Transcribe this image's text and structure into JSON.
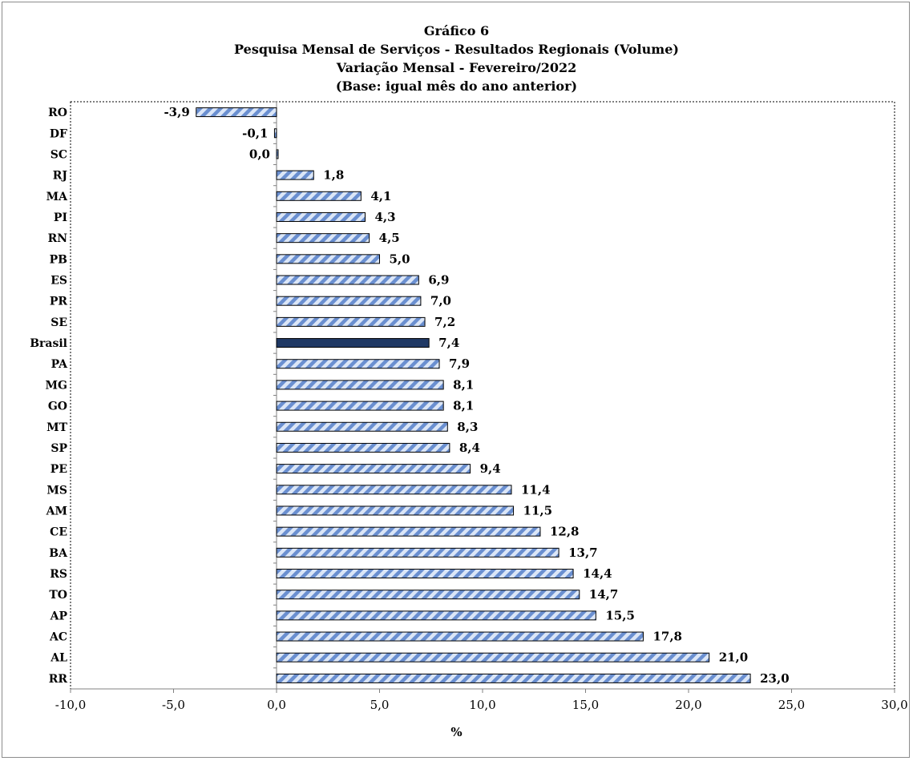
{
  "chart_data": {
    "type": "bar",
    "orientation": "horizontal",
    "title_lines": [
      "Gráfico 6",
      "Pesquisa  Mensal de Serviços - Resultados Regionais (Volume)",
      "Variação Mensal - Fevereiro/2022",
      "(Base: igual mês do ano anterior)"
    ],
    "xlabel": "%",
    "ylabel": "",
    "xlim": [
      -10,
      30
    ],
    "x_ticks": [
      -10,
      -5,
      0,
      5,
      10,
      15,
      20,
      25,
      30
    ],
    "x_tick_labels": [
      "-10,0",
      "-5,0",
      "0,0",
      "5,0",
      "10,0",
      "15,0",
      "20,0",
      "25,0",
      "30,0"
    ],
    "grid": false,
    "legend": "none",
    "categories": [
      "RO",
      "DF",
      "SC",
      "RJ",
      "MA",
      "PI",
      "RN",
      "PB",
      "ES",
      "PR",
      "SE",
      "Brasil",
      "PA",
      "MG",
      "GO",
      "MT",
      "SP",
      "PE",
      "MS",
      "AM",
      "CE",
      "BA",
      "RS",
      "TO",
      "AP",
      "AC",
      "AL",
      "RR"
    ],
    "values": [
      -3.9,
      -0.1,
      0.0,
      1.8,
      4.1,
      4.3,
      4.5,
      5.0,
      6.9,
      7.0,
      7.2,
      7.4,
      7.9,
      8.1,
      8.1,
      8.3,
      8.4,
      9.4,
      11.4,
      11.5,
      12.8,
      13.7,
      14.4,
      14.7,
      15.5,
      17.8,
      21.0,
      23.0
    ],
    "value_labels": [
      "-3,9",
      "-0,1",
      "0,0",
      "1,8",
      "4,1",
      "4,3",
      "4,5",
      "5,0",
      "6,9",
      "7,0",
      "7,2",
      "7,4",
      "7,9",
      "8,1",
      "8,1",
      "8,3",
      "8,4",
      "9,4",
      "11,4",
      "11,5",
      "12,8",
      "13,7",
      "14,4",
      "14,7",
      "15,5",
      "17,8",
      "21,0",
      "23,0"
    ],
    "highlight_category": "Brasil",
    "colors": {
      "bar_stripe": "#6a8fd0",
      "bar_light": "#dbe6f7",
      "bar_border": "#000000",
      "highlight": "#1f3864",
      "axis": "#808080"
    }
  }
}
